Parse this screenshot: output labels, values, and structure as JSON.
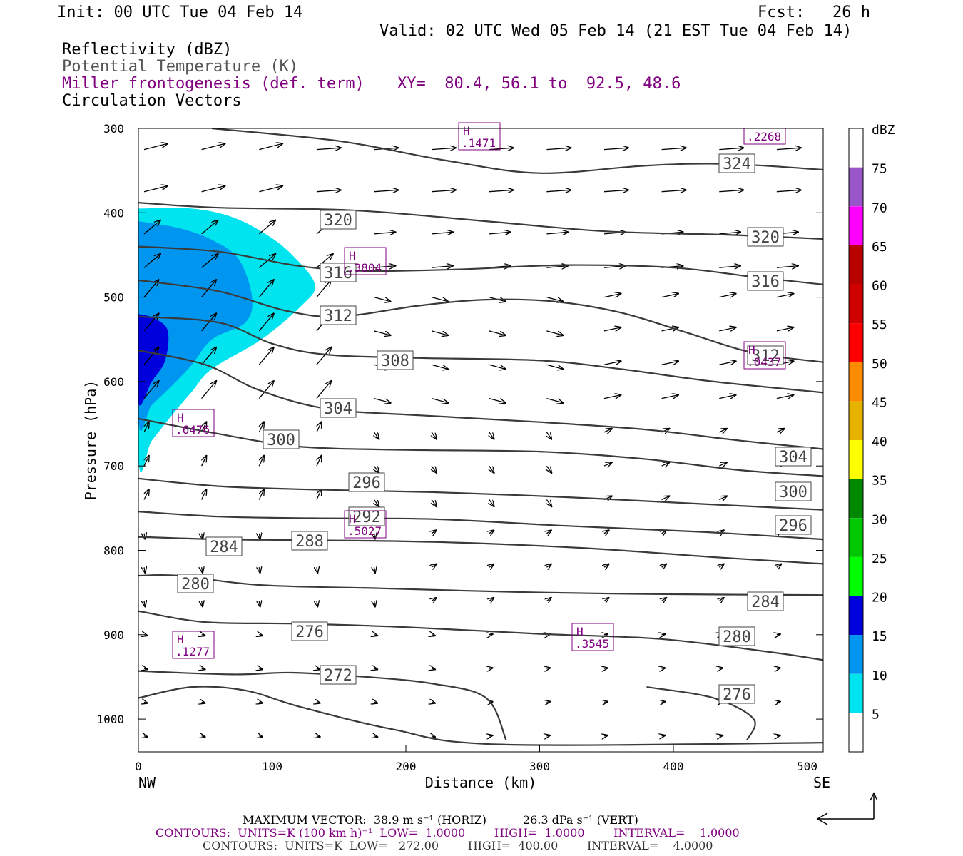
{
  "header": {
    "init": "Init: 00 UTC Tue 04 Feb 14",
    "fcst_label": "Fcst:",
    "fcst_value": "26 h",
    "valid": "Valid: 02 UTC Wed 05 Feb 14 (21 EST Tue 04 Feb 14)",
    "field1": "Reflectivity (dBZ)",
    "field2": "Potential Temperature (K)",
    "field3": "Miller frontogenesis (def. term)",
    "xy": "XY=  80.4, 56.1 to  92.5, 48.6",
    "field4": "Circulation Vectors"
  },
  "chart_data": {
    "type": "cross-section",
    "xlabel": "Distance (km)",
    "ylabel": "Pressure (hPa)",
    "xlim": [
      0,
      512
    ],
    "ylim": [
      300,
      1040
    ],
    "y_inverted": true,
    "xticks": [
      0,
      100,
      200,
      300,
      400,
      500
    ],
    "yticks": [
      300,
      400,
      500,
      600,
      700,
      800,
      900,
      1000
    ],
    "x_end_labels": {
      "left": "NW",
      "right": "SE"
    },
    "theta_contours": [
      {
        "label": "324",
        "points": [
          [
            55,
            300
          ],
          [
            150,
            315
          ],
          [
            230,
            338
          ],
          [
            300,
            353
          ],
          [
            380,
            344
          ],
          [
            440,
            342
          ],
          [
            512,
            349
          ]
        ]
      },
      {
        "label": "320",
        "points": [
          [
            0,
            388
          ],
          [
            60,
            394
          ],
          [
            160,
            397
          ],
          [
            260,
            410
          ],
          [
            350,
            422
          ],
          [
            440,
            426
          ],
          [
            512,
            431
          ]
        ]
      },
      {
        "label": "316",
        "points": [
          [
            0,
            440
          ],
          [
            60,
            446
          ],
          [
            120,
            463
          ],
          [
            170,
            469
          ],
          [
            240,
            467
          ],
          [
            320,
            462
          ],
          [
            400,
            465
          ],
          [
            460,
            476
          ],
          [
            512,
            485
          ]
        ]
      },
      {
        "label": "312",
        "points": [
          [
            0,
            480
          ],
          [
            60,
            493
          ],
          [
            110,
            516
          ],
          [
            150,
            523
          ],
          [
            210,
            510
          ],
          [
            260,
            503
          ],
          [
            310,
            505
          ],
          [
            360,
            518
          ],
          [
            410,
            542
          ],
          [
            460,
            566
          ],
          [
            512,
            577
          ]
        ]
      },
      {
        "label": "308",
        "points": [
          [
            0,
            523
          ],
          [
            60,
            530
          ],
          [
            100,
            555
          ],
          [
            140,
            568
          ],
          [
            210,
            572
          ],
          [
            300,
            575
          ],
          [
            360,
            585
          ],
          [
            430,
            600
          ],
          [
            512,
            613
          ]
        ]
      },
      {
        "label": "304",
        "points": [
          [
            0,
            563
          ],
          [
            50,
            580
          ],
          [
            90,
            610
          ],
          [
            140,
            632
          ],
          [
            210,
            640
          ],
          [
            300,
            648
          ],
          [
            380,
            657
          ],
          [
            450,
            670
          ],
          [
            512,
            680
          ]
        ]
      },
      {
        "label": "300",
        "points": [
          [
            0,
            644
          ],
          [
            60,
            662
          ],
          [
            120,
            677
          ],
          [
            200,
            681
          ],
          [
            300,
            683
          ],
          [
            380,
            692
          ],
          [
            450,
            705
          ],
          [
            512,
            712
          ]
        ]
      },
      {
        "label": "296",
        "points": [
          [
            0,
            715
          ],
          [
            60,
            724
          ],
          [
            130,
            728
          ],
          [
            220,
            731
          ],
          [
            320,
            737
          ],
          [
            420,
            745
          ],
          [
            512,
            752
          ]
        ]
      },
      {
        "label": "292",
        "points": [
          [
            0,
            754
          ],
          [
            60,
            760
          ],
          [
            130,
            762
          ],
          [
            220,
            763
          ],
          [
            320,
            771
          ],
          [
            420,
            778
          ],
          [
            512,
            787
          ]
        ]
      },
      {
        "label": "288",
        "points": [
          [
            0,
            784
          ],
          [
            60,
            787
          ],
          [
            130,
            788
          ],
          [
            220,
            790
          ],
          [
            330,
            797
          ],
          [
            430,
            808
          ],
          [
            512,
            816
          ]
        ]
      },
      {
        "label": "284",
        "points": [
          [
            0,
            830
          ],
          [
            30,
            830
          ],
          [
            90,
            841
          ],
          [
            180,
            845
          ],
          [
            300,
            850
          ],
          [
            400,
            852
          ],
          [
            512,
            853
          ]
        ]
      },
      {
        "label": "280",
        "points": [
          [
            0,
            872
          ],
          [
            50,
            885
          ],
          [
            120,
            887
          ],
          [
            200,
            891
          ],
          [
            300,
            899
          ],
          [
            390,
            905
          ],
          [
            470,
            920
          ],
          [
            512,
            930
          ]
        ]
      },
      {
        "label": "276",
        "points": [
          [
            0,
            943
          ],
          [
            70,
            947
          ],
          [
            115,
            945
          ],
          [
            170,
            950
          ],
          [
            220,
            958
          ],
          [
            260,
            975
          ],
          [
            275,
            1025
          ]
        ]
      },
      {
        "label": "276",
        "points": [
          [
            380,
            962
          ],
          [
            430,
            975
          ],
          [
            460,
            1000
          ],
          [
            455,
            1025
          ]
        ]
      },
      {
        "label": "272",
        "points": [
          [
            0,
            975
          ],
          [
            40,
            962
          ],
          [
            80,
            966
          ],
          [
            120,
            985
          ],
          [
            190,
            1012
          ],
          [
            270,
            1030
          ],
          [
            512,
            1028
          ]
        ]
      }
    ],
    "theta_labels": [
      "324",
      "320",
      "320",
      "316",
      "316",
      "312",
      "312",
      "308",
      "304",
      "304",
      "300",
      "300",
      "296",
      "296",
      "292",
      "288",
      "284",
      "284",
      "280",
      "280",
      "276",
      "276",
      "272"
    ],
    "reflectivity": [
      {
        "dbz": 5,
        "polygon": [
          [
            0,
            395
          ],
          [
            40,
            395
          ],
          [
            70,
            405
          ],
          [
            95,
            425
          ],
          [
            115,
            450
          ],
          [
            132,
            485
          ],
          [
            122,
            510
          ],
          [
            92,
            550
          ],
          [
            55,
            585
          ],
          [
            40,
            612
          ],
          [
            25,
            640
          ],
          [
            10,
            670
          ],
          [
            0,
            690
          ]
        ]
      },
      {
        "dbz": 10,
        "polygon": [
          [
            0,
            410
          ],
          [
            30,
            418
          ],
          [
            55,
            432
          ],
          [
            75,
            455
          ],
          [
            85,
            500
          ],
          [
            80,
            530
          ],
          [
            55,
            550
          ],
          [
            40,
            580
          ],
          [
            25,
            605
          ],
          [
            10,
            628
          ],
          [
            0,
            645
          ]
        ]
      },
      {
        "dbz": 15,
        "polygon": [
          [
            0,
            520
          ],
          [
            12,
            525
          ],
          [
            22,
            540
          ],
          [
            20,
            575
          ],
          [
            10,
            600
          ],
          [
            0,
            625
          ]
        ]
      }
    ],
    "frontogenesis_maxima": [
      {
        "label": "H",
        "value": ".1471"
      },
      {
        "label": "",
        "value": ".2268"
      },
      {
        "label": "H",
        "value": ".3804"
      },
      {
        "label": "H",
        "value": ".0437"
      },
      {
        "label": "H",
        "value": ".6476"
      },
      {
        "label": "H",
        "value": ".5027"
      },
      {
        "label": "H",
        "value": ".1277"
      },
      {
        "label": "H",
        "value": ".3545"
      }
    ],
    "colorbar": {
      "unit": "dBZ",
      "levels": [
        "5",
        "10",
        "15",
        "20",
        "25",
        "30",
        "35",
        "40",
        "45",
        "50",
        "55",
        "60",
        "65",
        "70",
        "75"
      ],
      "colors": [
        "#ffffff",
        "#00e4f0",
        "#0096f0",
        "#0000dc",
        "#00ff00",
        "#00c800",
        "#008800",
        "#ffff00",
        "#e6b400",
        "#ff8c00",
        "#ff0000",
        "#d00000",
        "#b80000",
        "#ff00ff",
        "#9955c9",
        "#ffffff"
      ]
    }
  },
  "footer": {
    "max_vector": "MAXIMUM VECTOR:  38.9 m s⁻¹ (HORIZ)          26.3 dPa s⁻¹ (VERT)",
    "contours1": "CONTOURS:  UNITS=K (100 km h)⁻¹  LOW=  1.0000        HIGH=  1.0000        INTERVAL=    1.0000",
    "contours2": "CONTOURS:  UNITS=K  LOW=   272.00        HIGH=  400.00        INTERVAL=    4.0000"
  }
}
